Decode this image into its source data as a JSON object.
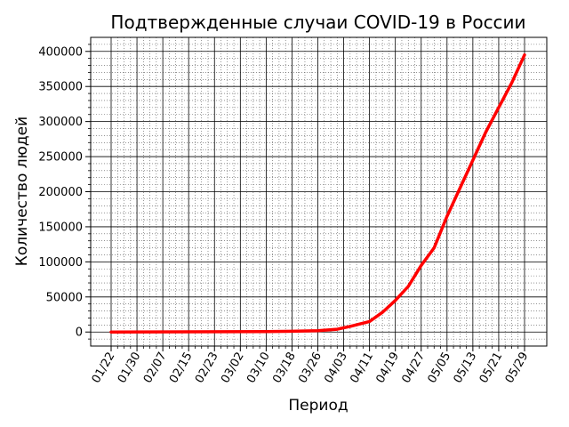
{
  "chart_data": {
    "type": "line",
    "title": "Подтвержденные случаи COVID-19 в России",
    "xlabel": "Период",
    "ylabel": "Количество людей",
    "grid": true,
    "x_start": "01/22",
    "x_end": "05/29",
    "x_ticks": [
      "01/22",
      "01/30",
      "02/07",
      "02/15",
      "02/23",
      "03/02",
      "03/10",
      "03/18",
      "03/26",
      "04/03",
      "04/11",
      "04/19",
      "04/27",
      "05/05",
      "05/13",
      "05/21",
      "05/29"
    ],
    "ylim": [
      -20000,
      420000
    ],
    "y_ticks": [
      "0",
      "50000",
      "100000",
      "150000",
      "200000",
      "250000",
      "300000",
      "350000",
      "400000"
    ],
    "series": [
      {
        "color": "#ff0000",
        "x": [
          "01/22",
          "03/10",
          "03/18",
          "03/26",
          "04/01",
          "04/05",
          "04/11",
          "04/15",
          "04/19",
          "04/23",
          "04/27",
          "05/01",
          "05/05",
          "05/09",
          "05/13",
          "05/17",
          "05/21",
          "05/25",
          "05/29"
        ],
        "values": [
          0,
          500,
          1000,
          1800,
          4000,
          8000,
          15000,
          28000,
          45000,
          65000,
          95000,
          120000,
          165000,
          205000,
          245000,
          285000,
          320000,
          355000,
          395000
        ]
      }
    ]
  }
}
